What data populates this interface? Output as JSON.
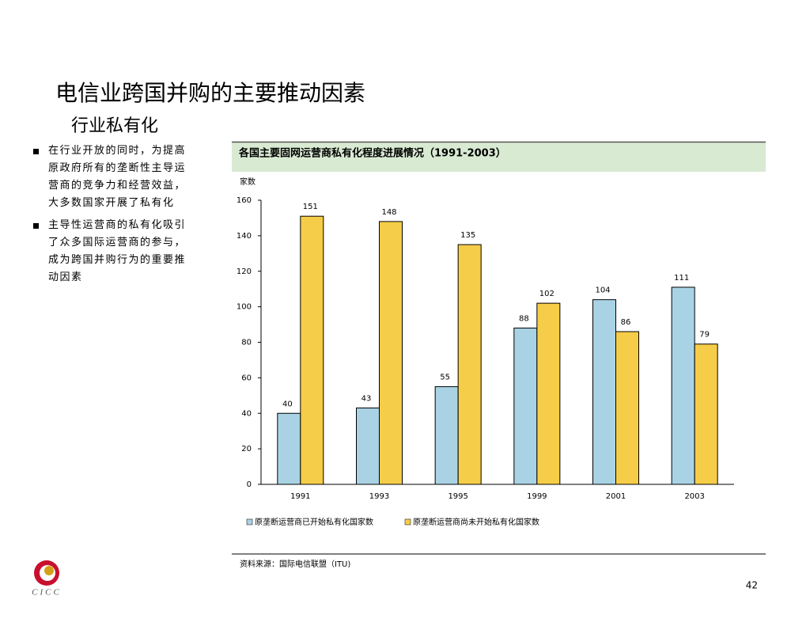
{
  "header": {
    "title": "电信业跨国并购的主要推动因素",
    "subtitle": "行业私有化"
  },
  "bullets": [
    "在行业开放的同时，为提高原政府所有的垄断性主导运营商的竞争力和经营效益，大多数国家开展了私有化",
    "主导性运营商的私有化吸引了众多国际运营商的参与，成为跨国并购行为的重要推动因素"
  ],
  "chart_data": {
    "type": "bar",
    "title": "各国主要固网运营商私有化程度进展情况（1991-2003）",
    "y_label": "家数",
    "categories": [
      "1991",
      "1993",
      "1995",
      "1999",
      "2001",
      "2003"
    ],
    "series": [
      {
        "name": "原垄断运营商已开始私有化国家数",
        "color": "#a9d3e5",
        "values": [
          40,
          43,
          55,
          88,
          104,
          111
        ]
      },
      {
        "name": "原垄断运营商尚未开始私有化国家数",
        "color": "#f6cd48",
        "values": [
          151,
          148,
          135,
          102,
          86,
          79
        ]
      }
    ],
    "ylim": [
      0,
      160
    ],
    "yticks": [
      0,
      20,
      40,
      60,
      80,
      100,
      120,
      140,
      160
    ]
  },
  "source": "资料来源：国际电信联盟（ITU)",
  "page_number": "42",
  "logo_text": "CICC"
}
